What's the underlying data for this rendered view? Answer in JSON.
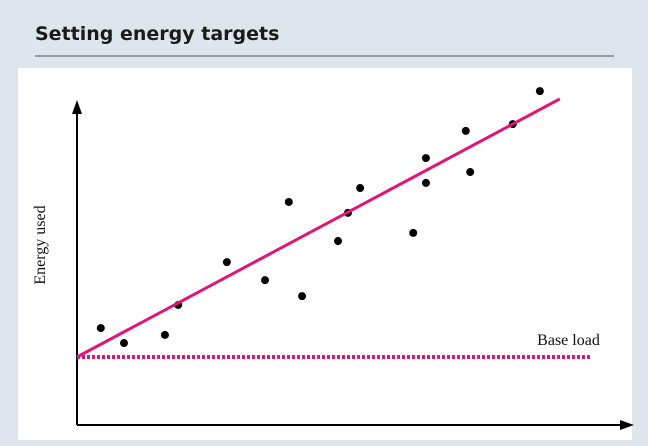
{
  "chart_data": {
    "type": "scatter",
    "title": "Setting energy targets",
    "ylabel": "Energy used",
    "xlim": [
      0,
      100
    ],
    "ylim": [
      0,
      100
    ],
    "series": [
      {
        "type": "scatter",
        "color": "#000000",
        "x": [
          4.3,
          8.5,
          15.9,
          18.3,
          27.1,
          34.0,
          38.3,
          40.7,
          47.2,
          49.0,
          51.2,
          60.8,
          63.1,
          63.1,
          70.3,
          71.1,
          78.8,
          83.7
        ],
        "values": [
          28.5,
          24.1,
          26.5,
          35.3,
          47.9,
          42.6,
          65.6,
          37.9,
          54.1,
          62.4,
          69.7,
          56.5,
          78.5,
          71.2,
          86.5,
          74.4,
          88.5,
          98.2
        ]
      },
      {
        "type": "line",
        "color": "#e0157a",
        "x": [
          0,
          87.3
        ],
        "values": [
          20.0,
          95.9
        ]
      },
      {
        "type": "line",
        "name": "Base load",
        "color": "#e0157a",
        "dashed": true,
        "x": [
          0,
          93.1
        ],
        "values": [
          20.0,
          20.0
        ]
      }
    ]
  }
}
